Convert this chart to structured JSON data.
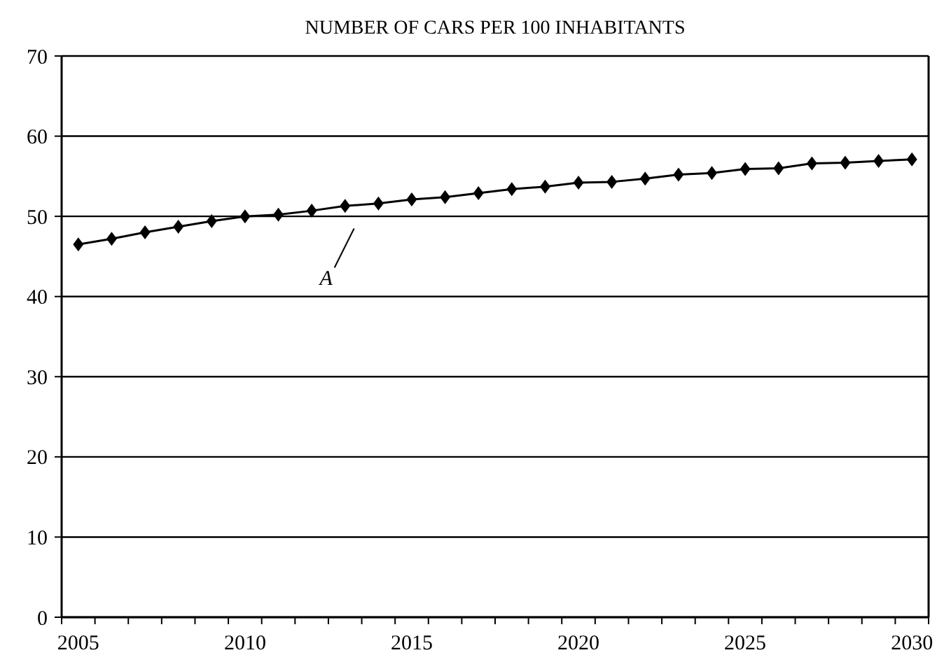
{
  "chart_data": {
    "type": "line",
    "title": "NUMBER OF CARS PER 100 INHABITANTS",
    "categories": [
      "2005",
      null,
      null,
      null,
      null,
      "2010",
      null,
      null,
      null,
      null,
      "2015",
      null,
      null,
      null,
      null,
      "2020",
      null,
      null,
      null,
      null,
      "2025",
      null,
      null,
      null,
      null,
      "2030"
    ],
    "series": [
      {
        "color": "#000000",
        "values": [
          46.5,
          47.2,
          48.0,
          48.7,
          49.4,
          50.0,
          50.2,
          50.7,
          51.3,
          51.6,
          52.1,
          52.4,
          52.9,
          53.4,
          53.7,
          54.2,
          54.3,
          54.7,
          55.2,
          55.4,
          55.9,
          56.0,
          56.6,
          56.7,
          56.9,
          57.1
        ]
      }
    ],
    "ylim": [
      0,
      70
    ],
    "yticks": [
      0,
      10,
      20,
      30,
      40,
      50,
      60,
      70
    ],
    "grid": "y",
    "marker": "diamond",
    "line_style": "solid",
    "annotations": [
      "A"
    ]
  }
}
